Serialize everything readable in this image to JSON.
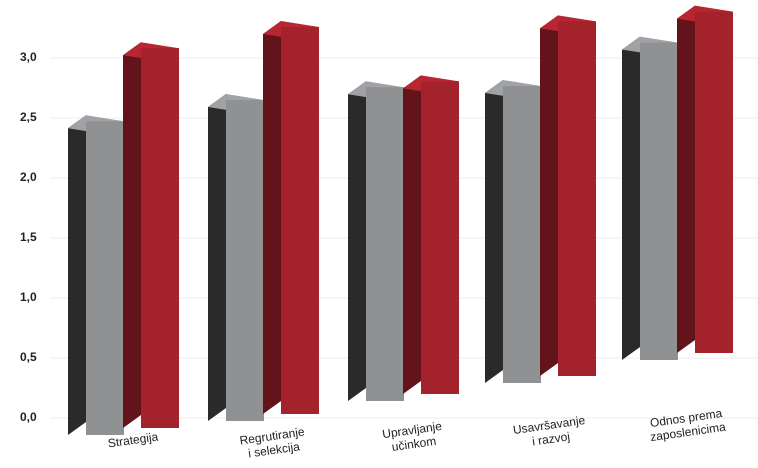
{
  "chart_data": {
    "type": "bar3d",
    "categories": [
      "Strategija",
      "Regrutiranje\ni selekcija",
      "Upravljanje\nučinkom",
      "Usavršavanje\ni razvoj",
      "Odnos prema\nzaposlenicima"
    ],
    "series": [
      {
        "color": "#8f9193",
        "values": [
          2.64,
          2.7,
          2.64,
          2.5,
          2.67
        ]
      },
      {
        "color": "#a3222c",
        "values": [
          3.19,
          3.25,
          2.63,
          2.98,
          2.87
        ]
      }
    ],
    "ylim": [
      0,
      3.3
    ],
    "yticks": [
      {
        "value": 0,
        "label": "0,0"
      },
      {
        "value": 0.5,
        "label": "0,5"
      },
      {
        "value": 1,
        "label": "1,0"
      },
      {
        "value": 1.5,
        "label": "1,5"
      },
      {
        "value": 2,
        "label": "2,0"
      },
      {
        "value": 2.5,
        "label": "2,5"
      },
      {
        "value": 3,
        "label": "3,0"
      }
    ],
    "grid": true
  }
}
